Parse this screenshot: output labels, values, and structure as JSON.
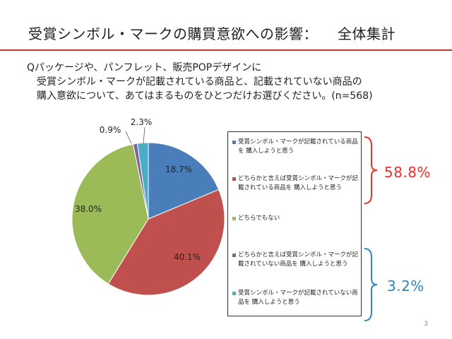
{
  "slide": {
    "title": "受賞シンボル・マークの購買意欲への影響：",
    "subtitle": "全体集計",
    "question_lines": [
      "Qパッケージや、パンフレット、販売POPデザインに",
      "受賞シンボル・マークが記載されている商品と、記載されていない商品の",
      "購入意欲について、あてはまるものをひとつだけお選びください。(n=568)"
    ],
    "page_number": "3",
    "colors": {
      "title_rule": "#c0392b",
      "positive_brace": "#e8302c",
      "negative_brace": "#2e86c1"
    }
  },
  "chart_data": {
    "type": "pie",
    "n": 568,
    "slices": [
      {
        "label": "受賞シンボル・マークが記載されている商品を 購入しようと思う",
        "value": 18.7,
        "value_label": "18.7%",
        "color": "#4a7ebb"
      },
      {
        "label": "どちらかと言えば受賞シンボル・マークが記載されている商品を 購入しようと思う",
        "value": 40.1,
        "value_label": "40.1%",
        "color": "#c0504d"
      },
      {
        "label": "どちらでもない",
        "value": 38.0,
        "value_label": "38.0%",
        "color": "#9bbb59"
      },
      {
        "label": "どちらかと言えば受賞シンボル・マークが記載されていない商品を 購入しようと思う",
        "value": 0.9,
        "value_label": "0.9%",
        "color": "#8064a2"
      },
      {
        "label": "受賞シンボル・マークが記載されていない商品を 購入しようと思う",
        "value": 2.3,
        "value_label": "2.3%",
        "color": "#4bacc6"
      }
    ],
    "groups": [
      {
        "value_label": "58.8%",
        "color": "#e8302c"
      },
      {
        "value_label": "3.2%",
        "color": "#2e86c1"
      }
    ]
  }
}
